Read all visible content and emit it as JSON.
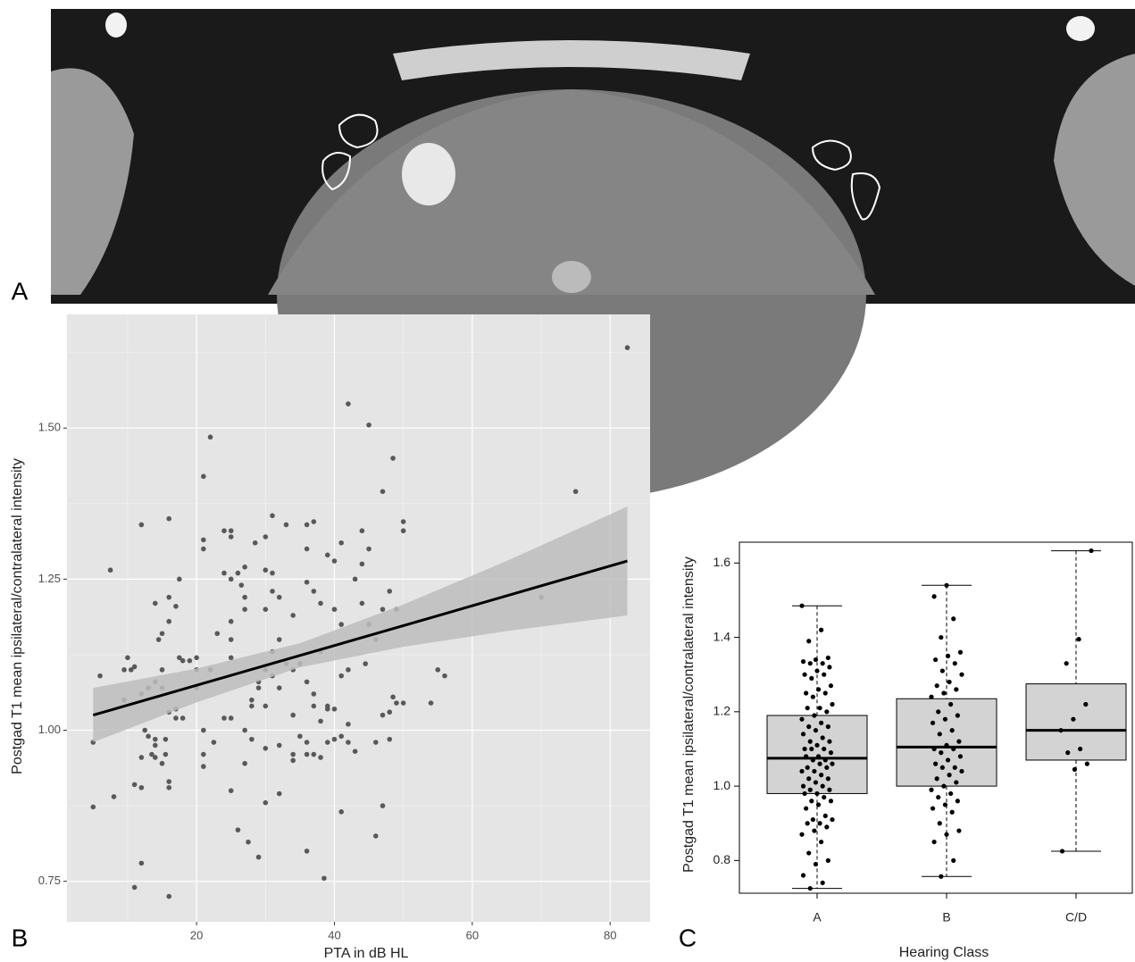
{
  "figure_labels": [
    "A",
    "B",
    "C"
  ],
  "chart_data": [
    {
      "type": "scatter",
      "x_label": "PTA in dB HL",
      "y_label": "Postgad T1 mean ipsilateral/contralateral intensity",
      "color": "#595959",
      "xlim": [
        1.2,
        85.8
      ],
      "ylim": [
        0.683,
        1.688
      ],
      "xticks": [
        20,
        40,
        60,
        80
      ],
      "yticks": [
        0.75,
        {
          "value": 1,
          "label": "1.00"
        },
        1.25,
        {
          "value": 1.5,
          "label": "1.50"
        }
      ],
      "grid": true,
      "x": [
        82.5,
        5,
        5,
        7.5,
        6,
        8,
        9.5,
        9.5,
        10,
        10.5,
        11,
        11,
        11,
        12,
        12,
        12,
        12,
        12,
        12.5,
        13,
        13,
        13.5,
        14,
        14,
        14,
        14,
        14,
        14.5,
        15,
        15,
        15,
        15,
        15.5,
        15.5,
        16,
        16,
        16,
        16,
        16,
        16,
        16,
        17,
        17,
        17,
        17.5,
        17.5,
        18,
        18,
        19,
        20,
        20,
        20,
        21,
        21,
        21,
        21,
        21,
        21,
        22,
        22,
        22.5,
        23,
        24,
        24,
        24,
        25,
        25,
        25,
        25,
        25,
        25,
        25,
        25,
        26,
        26,
        26.5,
        27,
        27,
        27,
        27,
        27,
        27.5,
        28,
        28,
        28,
        28.5,
        29,
        29,
        29,
        30,
        30,
        30,
        30,
        30,
        30,
        30,
        31,
        31,
        31,
        31,
        31,
        32,
        32,
        32,
        32,
        32,
        33,
        33,
        34,
        34,
        34,
        34,
        34,
        35,
        35,
        36,
        36,
        36,
        36,
        36,
        36,
        36,
        37,
        37,
        37,
        37,
        37,
        38,
        38,
        38,
        38,
        38.5,
        39,
        39,
        39,
        39,
        40,
        40,
        40,
        40,
        41,
        41,
        41,
        41,
        41,
        42,
        42,
        42,
        42,
        43,
        43,
        44,
        44,
        44,
        44.5,
        45,
        45,
        45,
        46,
        46,
        46,
        47,
        47,
        47,
        47,
        48,
        48,
        48,
        48.5,
        48.5,
        49,
        49,
        50,
        50,
        50,
        54,
        55,
        56,
        70,
        75
      ],
      "y": [
        1.633,
        0.873,
        0.98,
        1.265,
        1.09,
        0.89,
        1.1,
        1.05,
        1.12,
        1.1,
        1.105,
        0.74,
        0.91,
        0.78,
        1.34,
        1.06,
        0.955,
        0.905,
        1.0,
        0.99,
        1.07,
        0.96,
        1.21,
        1.08,
        0.985,
        0.975,
        0.955,
        1.15,
        1.16,
        1.1,
        1.07,
        0.945,
        0.96,
        0.985,
        1.35,
        1.22,
        1.18,
        1.03,
        0.915,
        0.905,
        0.725,
        1.02,
        1.035,
        1.205,
        1.25,
        1.12,
        1.115,
        1.02,
        1.115,
        1.1,
        1.07,
        1.12,
        1.42,
        1.315,
        1.3,
        0.96,
        0.94,
        1.0,
        1.485,
        1.1,
        0.98,
        1.16,
        1.33,
        1.26,
        1.02,
        1.33,
        1.32,
        1.25,
        1.18,
        1.15,
        1.12,
        1.02,
        0.9,
        1.26,
        0.835,
        1.24,
        1.27,
        1.22,
        1.2,
        1.0,
        0.945,
        0.815,
        1.05,
        1.04,
        0.985,
        1.31,
        0.79,
        1.07,
        1.08,
        1.32,
        1.265,
        1.2,
        1.1,
        1.04,
        0.97,
        0.88,
        1.355,
        1.26,
        1.23,
        1.13,
        1.09,
        1.22,
        1.15,
        1.07,
        0.975,
        0.895,
        1.34,
        1.11,
        1.1,
        1.19,
        1.025,
        0.96,
        0.95,
        1.11,
        0.99,
        1.34,
        1.3,
        1.245,
        1.08,
        0.98,
        0.96,
        0.8,
        1.345,
        1.23,
        1.06,
        1.04,
        0.96,
        1.21,
        1.13,
        1.015,
        0.955,
        0.755,
        1.29,
        1.04,
        1.035,
        0.98,
        1.28,
        1.2,
        1.035,
        0.985,
        1.31,
        1.175,
        1.09,
        0.99,
        0.865,
        1.54,
        1.1,
        1.01,
        0.98,
        1.25,
        0.965,
        1.33,
        1.275,
        1.21,
        1.11,
        1.505,
        1.3,
        1.175,
        1.15,
        0.98,
        0.825,
        1.025,
        1.395,
        0.875,
        1.2,
        1.23,
        0.985,
        1.03,
        1.45,
        1.055,
        1.045,
        1.2,
        1.345,
        1.33,
        1.045,
        1.045,
        1.1,
        1.09,
        1.22,
        1.395
      ],
      "fit": {
        "color": "#000000",
        "x": [
          5,
          82.5
        ],
        "y": [
          1.025,
          1.28
        ]
      },
      "band": {
        "color": "#bdbdbd",
        "x": [
          5,
          20,
          35,
          50,
          65,
          82.5
        ],
        "lower": [
          0.98,
          1.046,
          1.104,
          1.138,
          1.164,
          1.19
        ],
        "upper": [
          1.07,
          1.102,
          1.144,
          1.208,
          1.28,
          1.37
        ]
      }
    },
    {
      "type": "box",
      "x_label": "Hearing Class",
      "y_label": "Postgad T1 mean ipsilateral/contralateral intensity",
      "color": "#d3d3d3",
      "categories": [
        "A",
        "B",
        "C/D"
      ],
      "ylim": [
        0.712,
        1.656
      ],
      "yticks": [
        0.8,
        {
          "value": 1,
          "label": "1.0"
        },
        1.2,
        1.4,
        1.6
      ],
      "boxes": [
        {
          "min": 0.725,
          "q1": 0.98,
          "median": 1.075,
          "q3": 1.19,
          "max": 1.485,
          "points": [
            1.485,
            1.42,
            1.39,
            1.345,
            1.34,
            1.335,
            1.33,
            1.33,
            1.32,
            1.31,
            1.3,
            1.3,
            1.29,
            1.27,
            1.26,
            1.25,
            1.25,
            1.24,
            1.22,
            1.21,
            1.21,
            1.2,
            1.19,
            1.18,
            1.17,
            1.16,
            1.16,
            1.15,
            1.14,
            1.13,
            1.12,
            1.12,
            1.11,
            1.1,
            1.1,
            1.1,
            1.09,
            1.08,
            1.08,
            1.07,
            1.07,
            1.06,
            1.06,
            1.05,
            1.05,
            1.04,
            1.04,
            1.03,
            1.02,
            1.02,
            1.01,
            1.0,
            1.0,
            0.99,
            0.99,
            0.98,
            0.98,
            0.97,
            0.96,
            0.96,
            0.95,
            0.94,
            0.92,
            0.91,
            0.91,
            0.9,
            0.9,
            0.89,
            0.88,
            0.87,
            0.85,
            0.82,
            0.8,
            0.79,
            0.76,
            0.74,
            0.725
          ]
        },
        {
          "min": 0.757,
          "q1": 1.0,
          "median": 1.105,
          "q3": 1.235,
          "max": 1.54,
          "points": [
            1.54,
            1.51,
            1.45,
            1.4,
            1.36,
            1.35,
            1.34,
            1.33,
            1.31,
            1.3,
            1.28,
            1.27,
            1.26,
            1.25,
            1.24,
            1.22,
            1.2,
            1.19,
            1.18,
            1.17,
            1.15,
            1.14,
            1.12,
            1.11,
            1.1,
            1.1,
            1.09,
            1.08,
            1.07,
            1.06,
            1.05,
            1.05,
            1.04,
            1.03,
            1.02,
            1.01,
            1.0,
            0.99,
            0.98,
            0.97,
            0.96,
            0.95,
            0.94,
            0.93,
            0.9,
            0.88,
            0.87,
            0.85,
            0.8,
            0.757
          ]
        },
        {
          "min": 0.825,
          "q1": 1.07,
          "median": 1.15,
          "q3": 1.275,
          "max": 1.633,
          "points": [
            1.633,
            1.395,
            1.33,
            1.22,
            1.18,
            1.15,
            1.1,
            1.09,
            1.06,
            1.045,
            0.825
          ]
        }
      ]
    }
  ]
}
